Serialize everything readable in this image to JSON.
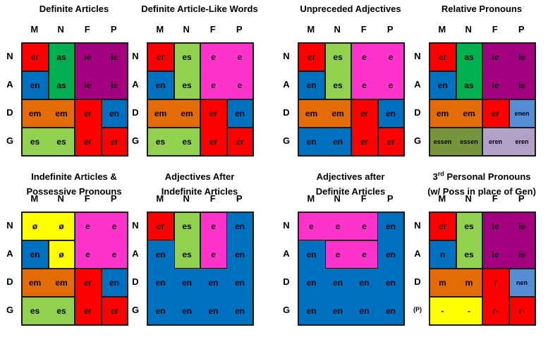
{
  "colors": {
    "red": "#ff0000",
    "green": "#00b050",
    "lime": "#92d050",
    "purple": "#a50080",
    "blue": "#0070c0",
    "orange": "#e36c09",
    "pink": "#ff33cc",
    "yellow": "#ffff00",
    "olive": "#77933c",
    "lightblue": "#558ed5",
    "lavender": "#b1a0c7"
  },
  "col_headers": [
    "M",
    "N",
    "F",
    "P"
  ],
  "panels": [
    {
      "title": "Definite Articles",
      "rows": [
        "N",
        "A",
        "D",
        "G"
      ],
      "cells": [
        [
          "er",
          "as",
          "ie",
          "ie"
        ],
        [
          "en",
          "as",
          "ie",
          "ie"
        ],
        [
          "em",
          "em",
          "er",
          "en"
        ],
        [
          "es",
          "es",
          "er",
          "er"
        ]
      ],
      "blocks": [
        {
          "c": "red",
          "r0": 0,
          "c0": 0,
          "r1": 0,
          "c1": 0
        },
        {
          "c": "green",
          "r0": 0,
          "c0": 1,
          "r1": 1,
          "c1": 1
        },
        {
          "c": "purple",
          "r0": 0,
          "c0": 2,
          "r1": 1,
          "c1": 3
        },
        {
          "c": "blue",
          "r0": 1,
          "c0": 0,
          "r1": 1,
          "c1": 0
        },
        {
          "c": "orange",
          "r0": 2,
          "c0": 0,
          "r1": 2,
          "c1": 1
        },
        {
          "c": "red",
          "r0": 2,
          "c0": 2,
          "r1": 3,
          "c1": 2
        },
        {
          "c": "blue",
          "r0": 2,
          "c0": 3,
          "r1": 2,
          "c1": 3
        },
        {
          "c": "lime",
          "r0": 3,
          "c0": 0,
          "r1": 3,
          "c1": 1
        },
        {
          "c": "red",
          "r0": 3,
          "c0": 3,
          "r1": 3,
          "c1": 3
        }
      ]
    },
    {
      "title": "Definite Article-Like Words",
      "rows": [
        "N",
        "A",
        "D",
        "G"
      ],
      "cells": [
        [
          "er",
          "es",
          "e",
          "e"
        ],
        [
          "en",
          "es",
          "e",
          "e"
        ],
        [
          "em",
          "em",
          "er",
          "en"
        ],
        [
          "es",
          "es",
          "er",
          "er"
        ]
      ],
      "blocks": [
        {
          "c": "red",
          "r0": 0,
          "c0": 0,
          "r1": 0,
          "c1": 0
        },
        {
          "c": "lime",
          "r0": 0,
          "c0": 1,
          "r1": 1,
          "c1": 1
        },
        {
          "c": "pink",
          "r0": 0,
          "c0": 2,
          "r1": 1,
          "c1": 3
        },
        {
          "c": "blue",
          "r0": 1,
          "c0": 0,
          "r1": 1,
          "c1": 0
        },
        {
          "c": "orange",
          "r0": 2,
          "c0": 0,
          "r1": 2,
          "c1": 1
        },
        {
          "c": "red",
          "r0": 2,
          "c0": 2,
          "r1": 3,
          "c1": 2
        },
        {
          "c": "blue",
          "r0": 2,
          "c0": 3,
          "r1": 2,
          "c1": 3
        },
        {
          "c": "lime",
          "r0": 3,
          "c0": 0,
          "r1": 3,
          "c1": 1
        },
        {
          "c": "red",
          "r0": 3,
          "c0": 3,
          "r1": 3,
          "c1": 3
        }
      ]
    },
    {
      "title": "Unpreceded Adjectives",
      "rows": [
        "N",
        "A",
        "D",
        "G"
      ],
      "cells": [
        [
          "er",
          "es",
          "e",
          "e"
        ],
        [
          "en",
          "es",
          "e",
          "e"
        ],
        [
          "em",
          "em",
          "er",
          "en"
        ],
        [
          "en",
          "en",
          "er",
          "er"
        ]
      ],
      "blocks": [
        {
          "c": "red",
          "r0": 0,
          "c0": 0,
          "r1": 0,
          "c1": 0
        },
        {
          "c": "lime",
          "r0": 0,
          "c0": 1,
          "r1": 1,
          "c1": 1
        },
        {
          "c": "pink",
          "r0": 0,
          "c0": 2,
          "r1": 1,
          "c1": 3
        },
        {
          "c": "blue",
          "r0": 1,
          "c0": 0,
          "r1": 1,
          "c1": 0
        },
        {
          "c": "orange",
          "r0": 2,
          "c0": 0,
          "r1": 2,
          "c1": 1
        },
        {
          "c": "red",
          "r0": 2,
          "c0": 2,
          "r1": 3,
          "c1": 2
        },
        {
          "c": "blue",
          "r0": 2,
          "c0": 3,
          "r1": 2,
          "c1": 3
        },
        {
          "c": "blue",
          "r0": 3,
          "c0": 0,
          "r1": 3,
          "c1": 1
        },
        {
          "c": "red",
          "r0": 3,
          "c0": 3,
          "r1": 3,
          "c1": 3
        }
      ]
    },
    {
      "title": "Relative Pronouns",
      "rows": [
        "N",
        "A",
        "D",
        "G"
      ],
      "cells": [
        [
          "er",
          "as",
          "ie",
          "ie"
        ],
        [
          "en",
          "as",
          "ie",
          "ie"
        ],
        [
          "em",
          "em",
          "er",
          "enen"
        ],
        [
          "essen",
          "essen",
          "eren",
          "eren"
        ]
      ],
      "small": [
        [
          2,
          3
        ],
        [
          3,
          0
        ],
        [
          3,
          1
        ],
        [
          3,
          2
        ],
        [
          3,
          3
        ]
      ],
      "blocks": [
        {
          "c": "red",
          "r0": 0,
          "c0": 0,
          "r1": 0,
          "c1": 0
        },
        {
          "c": "green",
          "r0": 0,
          "c0": 1,
          "r1": 1,
          "c1": 1
        },
        {
          "c": "purple",
          "r0": 0,
          "c0": 2,
          "r1": 1,
          "c1": 3
        },
        {
          "c": "blue",
          "r0": 1,
          "c0": 0,
          "r1": 1,
          "c1": 0
        },
        {
          "c": "orange",
          "r0": 2,
          "c0": 0,
          "r1": 2,
          "c1": 1
        },
        {
          "c": "red",
          "r0": 2,
          "c0": 2,
          "r1": 2,
          "c1": 2
        },
        {
          "c": "lightblue",
          "r0": 2,
          "c0": 3,
          "r1": 2,
          "c1": 3
        },
        {
          "c": "olive",
          "r0": 3,
          "c0": 0,
          "r1": 3,
          "c1": 1
        },
        {
          "c": "lavender",
          "r0": 3,
          "c0": 2,
          "r1": 3,
          "c1": 3
        }
      ]
    },
    {
      "title": "Indefinite Articles &",
      "title2": "Possessive Pronouns",
      "rows": [
        "N",
        "A",
        "D",
        "G"
      ],
      "cells": [
        [
          "ø",
          "ø",
          "e",
          "e"
        ],
        [
          "en",
          "ø",
          "e",
          "e"
        ],
        [
          "em",
          "em",
          "er",
          "en"
        ],
        [
          "es",
          "es",
          "er",
          "er"
        ]
      ],
      "blocks": [
        {
          "c": "yellow",
          "r0": 0,
          "c0": 0,
          "r1": 0,
          "c1": 1
        },
        {
          "c": "yellow",
          "r0": 1,
          "c0": 1,
          "r1": 1,
          "c1": 1
        },
        {
          "c": "pink",
          "r0": 0,
          "c0": 2,
          "r1": 1,
          "c1": 3
        },
        {
          "c": "blue",
          "r0": 1,
          "c0": 0,
          "r1": 1,
          "c1": 0
        },
        {
          "c": "orange",
          "r0": 2,
          "c0": 0,
          "r1": 2,
          "c1": 1
        },
        {
          "c": "red",
          "r0": 2,
          "c0": 2,
          "r1": 3,
          "c1": 2
        },
        {
          "c": "blue",
          "r0": 2,
          "c0": 3,
          "r1": 2,
          "c1": 3
        },
        {
          "c": "lime",
          "r0": 3,
          "c0": 0,
          "r1": 3,
          "c1": 1
        },
        {
          "c": "red",
          "r0": 3,
          "c0": 3,
          "r1": 3,
          "c1": 3
        }
      ]
    },
    {
      "title": "Adjectives After",
      "title2": "Indefinite Articles",
      "rows": [
        "N",
        "A",
        "D",
        "G"
      ],
      "cells": [
        [
          "er",
          "es",
          "e",
          "en"
        ],
        [
          "en",
          "es",
          "e",
          "en"
        ],
        [
          "en",
          "en",
          "en",
          "en"
        ],
        [
          "en",
          "en",
          "en",
          "en"
        ]
      ],
      "blocks": [
        {
          "c": "blue",
          "r0": 0,
          "c0": 0,
          "r1": 3,
          "c1": 3
        },
        {
          "c": "red",
          "r0": 0,
          "c0": 0,
          "r1": 0,
          "c1": 0
        },
        {
          "c": "lime",
          "r0": 0,
          "c0": 1,
          "r1": 1,
          "c1": 1
        },
        {
          "c": "pink",
          "r0": 0,
          "c0": 2,
          "r1": 1,
          "c1": 2
        }
      ]
    },
    {
      "title": "Adjectives after",
      "title2": "Definite Articles",
      "rows": [
        "N",
        "A",
        "D",
        "G"
      ],
      "cells": [
        [
          "e",
          "e",
          "e",
          "en"
        ],
        [
          "en",
          "e",
          "e",
          "en"
        ],
        [
          "en",
          "en",
          "en",
          "en"
        ],
        [
          "en",
          "en",
          "en",
          "en"
        ]
      ],
      "blocks": [
        {
          "c": "blue",
          "r0": 0,
          "c0": 0,
          "r1": 3,
          "c1": 3
        },
        {
          "c": "pink",
          "r0": 0,
          "c0": 0,
          "r1": 0,
          "c1": 2
        },
        {
          "c": "pink",
          "r0": 1,
          "c0": 1,
          "r1": 1,
          "c1": 2
        }
      ]
    },
    {
      "title_pre": "3",
      "title_sup": "rd",
      "title": " Personal Pronouns",
      "title2": "(w/ Poss in place of Gen)",
      "rows": [
        "N",
        "A",
        "D",
        "(P)"
      ],
      "cells": [
        [
          "er",
          "es",
          "ie",
          "ie"
        ],
        [
          "n",
          "es",
          "ie",
          "ie"
        ],
        [
          "m",
          "m",
          "r",
          "nen"
        ],
        [
          "-",
          "-",
          "r-",
          "r-"
        ]
      ],
      "small": [
        [
          2,
          3
        ]
      ],
      "blocks": [
        {
          "c": "red",
          "r0": 0,
          "c0": 0,
          "r1": 0,
          "c1": 0
        },
        {
          "c": "lime",
          "r0": 0,
          "c0": 1,
          "r1": 1,
          "c1": 1
        },
        {
          "c": "purple",
          "r0": 0,
          "c0": 2,
          "r1": 1,
          "c1": 3
        },
        {
          "c": "blue",
          "r0": 1,
          "c0": 0,
          "r1": 1,
          "c1": 0
        },
        {
          "c": "orange",
          "r0": 2,
          "c0": 0,
          "r1": 2,
          "c1": 1
        },
        {
          "c": "red",
          "r0": 2,
          "c0": 2,
          "r1": 3,
          "c1": 2
        },
        {
          "c": "lightblue",
          "r0": 2,
          "c0": 3,
          "r1": 2,
          "c1": 3
        },
        {
          "c": "yellow",
          "r0": 3,
          "c0": 0,
          "r1": 3,
          "c1": 1
        },
        {
          "c": "red",
          "r0": 3,
          "c0": 3,
          "r1": 3,
          "c1": 3
        }
      ]
    }
  ]
}
